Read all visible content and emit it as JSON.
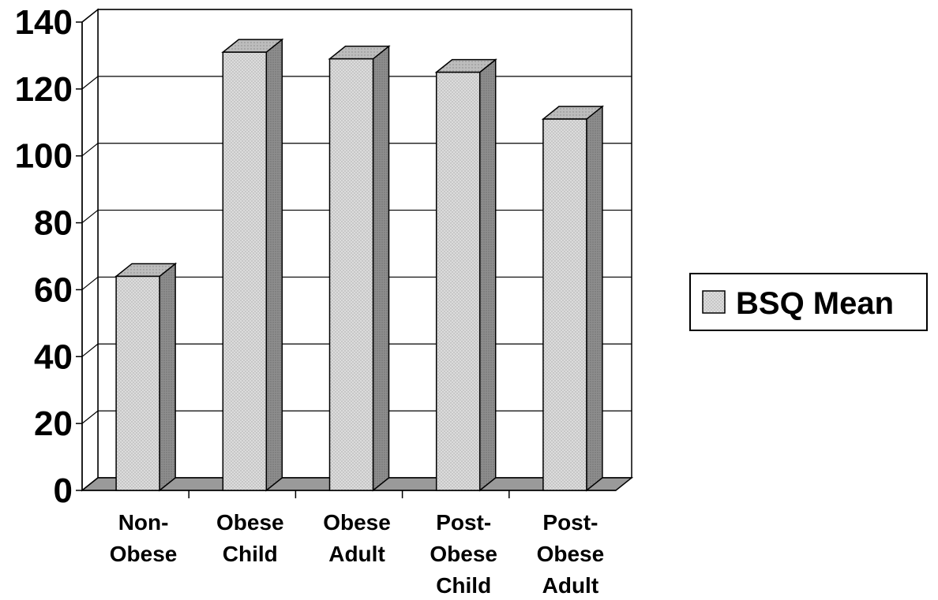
{
  "chart_data": {
    "type": "bar",
    "categories": [
      [
        "Non-",
        "Obese"
      ],
      [
        "Obese",
        "Child"
      ],
      [
        "Obese",
        "Adult"
      ],
      [
        "Post-",
        "Obese",
        "Child"
      ],
      [
        "Post-",
        "Obese",
        "Adult"
      ]
    ],
    "series": [
      {
        "name": "BSQ Mean",
        "values": [
          64,
          131,
          129,
          125,
          111
        ]
      }
    ],
    "ylim": [
      0,
      140
    ],
    "yticks": [
      0,
      20,
      40,
      60,
      80,
      100,
      120,
      140
    ],
    "grid": true,
    "legend": "right",
    "style": "3d-column",
    "colors": {
      "bar_front": "#d8d8d8",
      "bar_top": "#b8b8b8",
      "bar_side": "#8c8c8c",
      "grid": "#000000"
    }
  }
}
